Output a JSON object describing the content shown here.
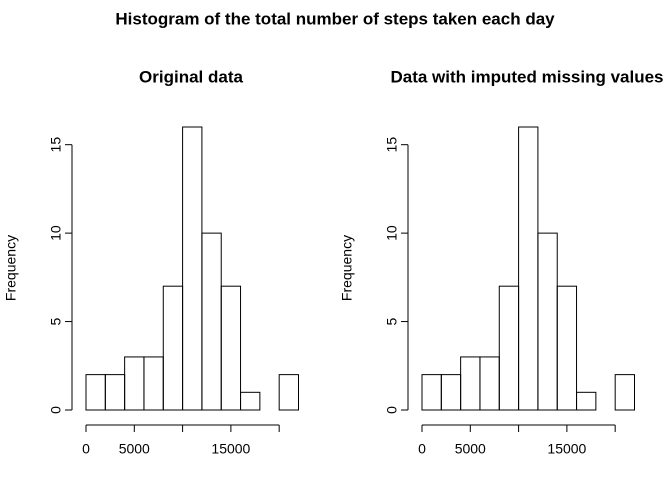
{
  "title": "Histogram of the total number of steps taken each day",
  "chart_data": [
    {
      "type": "histogram",
      "title": "Original data",
      "ylabel": "Frequency",
      "bins": [
        0,
        2000,
        4000,
        6000,
        8000,
        10000,
        12000,
        14000,
        16000,
        18000,
        20000,
        22000
      ],
      "values": [
        2,
        2,
        3,
        3,
        7,
        16,
        10,
        7,
        1,
        0,
        2
      ],
      "xlim": [
        0,
        22000
      ],
      "ylim": [
        0,
        16
      ],
      "xticks": [
        0,
        5000,
        {
          "value": 10000,
          "label": null
        },
        15000,
        {
          "value": 20000,
          "label": null
        }
      ],
      "yticks": [
        0,
        5,
        10,
        15
      ]
    },
    {
      "type": "histogram",
      "title": "Data with imputed missing values",
      "ylabel": "Frequency",
      "bins": [
        0,
        2000,
        4000,
        6000,
        8000,
        10000,
        12000,
        14000,
        16000,
        18000,
        20000,
        22000
      ],
      "values": [
        2,
        2,
        3,
        3,
        7,
        16,
        10,
        7,
        1,
        0,
        2
      ],
      "xlim": [
        0,
        22000
      ],
      "ylim": [
        0,
        16
      ],
      "xticks": [
        0,
        5000,
        {
          "value": 10000,
          "label": null
        },
        15000,
        {
          "value": 20000,
          "label": null
        }
      ],
      "yticks": [
        0,
        5,
        10,
        15
      ]
    }
  ]
}
